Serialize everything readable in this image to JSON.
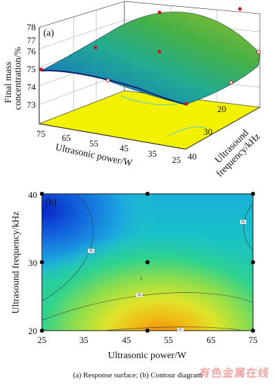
{
  "chart_data": [
    {
      "type": "surface3d",
      "panel_label": "(a)",
      "zlabel_line1": "Final mass",
      "zlabel_line2": "concentration/%",
      "xlabel": "Ultrasonic power/W",
      "ylabel_line1": "Ultrasound",
      "ylabel_line2": "frequency/kHz",
      "x_ticks": [
        "75",
        "65",
        "55",
        "45",
        "35",
        "25"
      ],
      "y_ticks": [
        "20",
        "30",
        "40"
      ],
      "z_ticks": [
        "73",
        "74",
        "75",
        "76",
        "77",
        "78"
      ],
      "x_range": [
        25,
        75
      ],
      "y_range": [
        20,
        40
      ],
      "z_range": [
        72.5,
        78
      ],
      "floor_color": "#f2f200",
      "surface_colors": [
        "#2c4bd6",
        "#19a6b8",
        "#49c24a",
        "#d6d82a"
      ]
    },
    {
      "type": "contour",
      "panel_label": "(b)",
      "xlabel": "Ultrasonic power/W",
      "ylabel": "Ultrasound frequency/kHz",
      "x_ticks": [
        "25",
        "35",
        "45",
        "55",
        "65",
        "75"
      ],
      "y_ticks": [
        "20",
        "30",
        "40"
      ],
      "x_range": [
        25,
        75
      ],
      "y_range": [
        20,
        40
      ],
      "contour_labels": [
        "75",
        "75",
        "76",
        "77"
      ],
      "center_point_label": "2",
      "design_points": [
        {
          "x": 25,
          "y": 40
        },
        {
          "x": 50,
          "y": 40
        },
        {
          "x": 75,
          "y": 40
        },
        {
          "x": 25,
          "y": 30
        },
        {
          "x": 50,
          "y": 30
        },
        {
          "x": 75,
          "y": 30
        },
        {
          "x": 25,
          "y": 20
        },
        {
          "x": 50,
          "y": 20
        },
        {
          "x": 75,
          "y": 20
        }
      ],
      "colorscale": [
        "#0a2bd0",
        "#1e7ee6",
        "#17c2cf",
        "#46d37a",
        "#b5e23a",
        "#f0dc1c",
        "#f29a10"
      ]
    }
  ],
  "caption": "(a) Response surface; (b) Contour diagram",
  "watermark": "有色金属在线"
}
